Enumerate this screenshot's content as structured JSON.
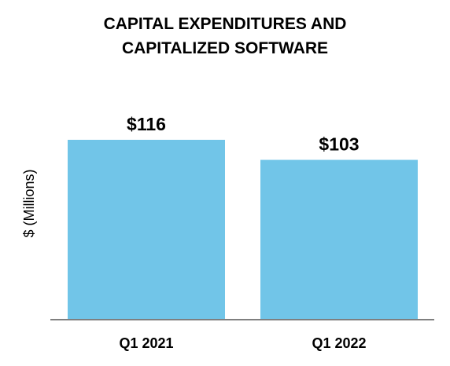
{
  "chart_data": {
    "type": "bar",
    "title_lines": [
      "CAPITAL EXPENDITURES AND",
      "CAPITALIZED SOFTWARE"
    ],
    "ylabel": "$ (Millions)",
    "xlabel": "",
    "categories": [
      "Q1 2021",
      "Q1 2022"
    ],
    "values": [
      116,
      103
    ],
    "value_labels": [
      "$116",
      "$103"
    ],
    "ylim": [
      0,
      116
    ],
    "grid": false,
    "bar_color": "#71c5e8",
    "axis_color": "#7f7f7f"
  }
}
